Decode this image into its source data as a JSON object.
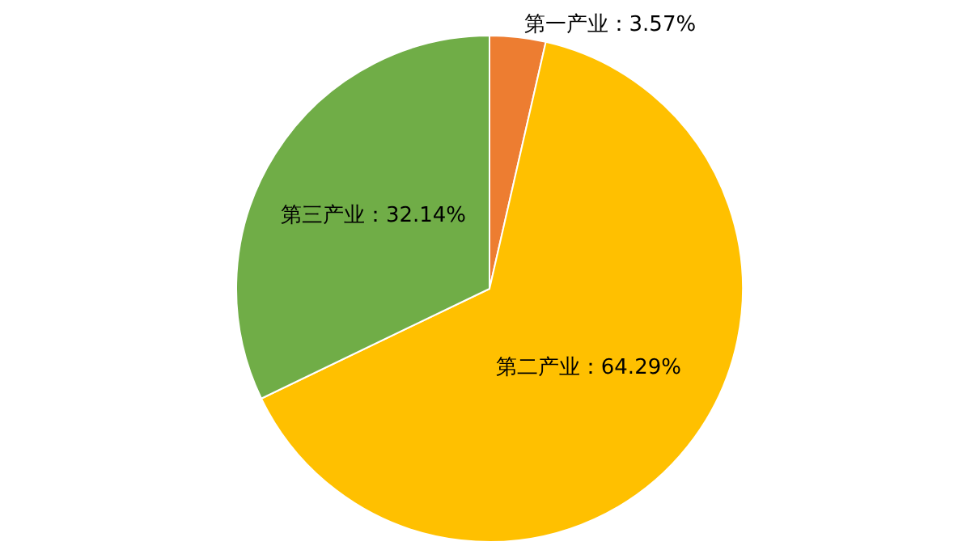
{
  "chart_data": {
    "type": "pie",
    "categories": [
      "第一产业",
      "第二产业",
      "第三产业"
    ],
    "values": [
      3.57,
      64.29,
      32.14
    ],
    "colors": [
      "#ed7d31",
      "#ffc000",
      "#70ad47"
    ],
    "value_labels": [
      "3.57%",
      "64.29%",
      "32.14%"
    ],
    "legend": false
  }
}
